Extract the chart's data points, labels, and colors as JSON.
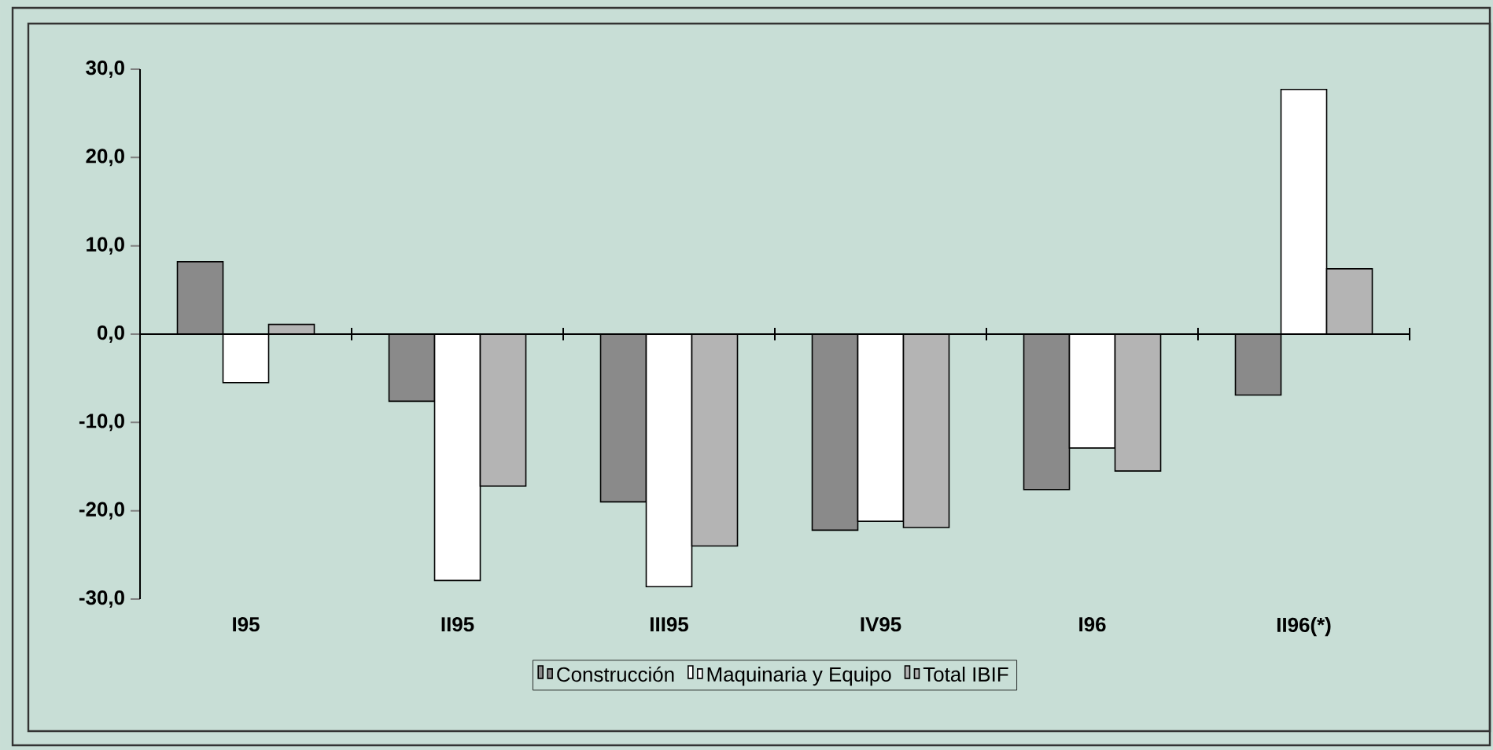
{
  "chart_data": {
    "type": "bar",
    "categories": [
      "I95",
      "II95",
      "III95",
      "IV95",
      "I96",
      "II96(*)"
    ],
    "series": [
      {
        "name": "Construcción",
        "color": "#8a8a8a",
        "values": [
          8.2,
          -7.6,
          -19.0,
          -22.2,
          -17.6,
          -6.9
        ]
      },
      {
        "name": "Maquinaria y Equipo",
        "color": "#ffffff",
        "values": [
          -5.5,
          -27.9,
          -28.6,
          -21.2,
          -12.9,
          27.7
        ]
      },
      {
        "name": "Total IBIF",
        "color": "#b4b4b4",
        "values": [
          1.1,
          -17.2,
          -24.0,
          -21.9,
          -15.5,
          7.4
        ]
      }
    ],
    "ylim": [
      -30,
      30
    ],
    "yticks": [
      {
        "value": -30,
        "label": "-30,0"
      },
      {
        "value": -20,
        "label": "-20,0"
      },
      {
        "value": -10,
        "label": "-10,0"
      },
      {
        "value": 0,
        "label": "0,0"
      },
      {
        "value": 10,
        "label": "10,0"
      },
      {
        "value": 20,
        "label": "20,0"
      },
      {
        "value": 30,
        "label": "30,0"
      }
    ],
    "legend": "bottom"
  }
}
